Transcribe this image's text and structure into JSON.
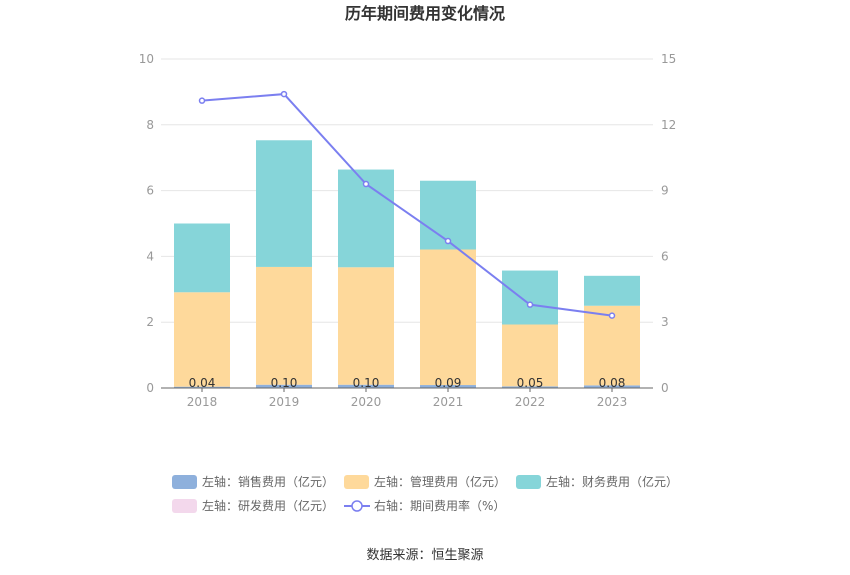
{
  "chart_data": {
    "type": "bar",
    "title": "历年期间费用变化情况",
    "categories": [
      "2018",
      "2019",
      "2020",
      "2021",
      "2022",
      "2023"
    ],
    "left_axis": {
      "ylim": [
        0,
        10
      ],
      "ticks": [
        "0",
        "2",
        "4",
        "6",
        "8",
        "10"
      ]
    },
    "right_axis": {
      "ylim": [
        0,
        15
      ],
      "ticks": [
        "0",
        "3",
        "6",
        "9",
        "12",
        "15"
      ]
    },
    "series": [
      {
        "name": "左轴：销售费用（亿元）",
        "type": "bar",
        "axis": "left",
        "color": "#8eb0dc",
        "values": [
          0.04,
          0.1,
          0.1,
          0.09,
          0.05,
          0.08
        ]
      },
      {
        "name": "左轴：管理费用（亿元）",
        "type": "bar",
        "axis": "left",
        "color": "#fed99b",
        "values": [
          2.87,
          3.58,
          3.57,
          4.12,
          1.88,
          2.42
        ]
      },
      {
        "name": "左轴：财务费用（亿元）",
        "type": "bar",
        "axis": "left",
        "color": "#86d5d9",
        "values": [
          2.09,
          3.85,
          2.97,
          2.09,
          1.64,
          0.91
        ]
      },
      {
        "name": "左轴：研发费用（亿元）",
        "type": "bar",
        "axis": "left",
        "color": "#f3d8ec",
        "values": [
          0,
          0,
          0,
          0,
          0,
          0
        ]
      },
      {
        "name": "右轴：期间费用率（%）",
        "type": "line",
        "axis": "right",
        "color": "#7b7ff0",
        "values": [
          13.1,
          13.4,
          9.3,
          6.7,
          3.8,
          3.3
        ]
      }
    ],
    "data_labels": [
      "0.04",
      "0.10",
      "0.10",
      "0.09",
      "0.05",
      "0.08"
    ],
    "grid": true,
    "legend": "bottom"
  },
  "footer": {
    "source": "数据来源：恒生聚源"
  }
}
